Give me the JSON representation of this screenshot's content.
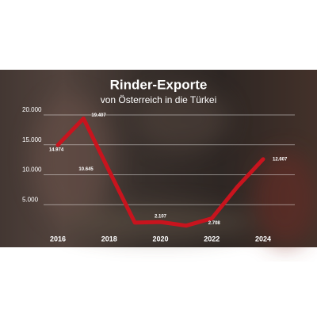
{
  "chart_data": {
    "type": "line",
    "title": "Rinder-Exporte",
    "subtitle": "von Österreich in die Türkei",
    "x": [
      2016,
      2017,
      2018,
      2019,
      2020,
      2021,
      2022,
      2023,
      2024
    ],
    "xticks": [
      2016,
      2018,
      2020,
      2022,
      2024
    ],
    "series": [
      {
        "name": "Rinder-Exporte",
        "color": "#c8141e",
        "values": [
          14974,
          19407,
          10645,
          2000,
          2107,
          1500,
          2708,
          8000,
          12607
        ],
        "value_labels": [
          "14.974",
          "19.407",
          "10.645",
          null,
          "2.107",
          null,
          "2.708",
          null,
          "12.607"
        ]
      }
    ],
    "ylim": [
      0,
      20000
    ],
    "yticks": [
      {
        "value": 5000,
        "label": "5.000"
      },
      {
        "value": 10000,
        "label": "10.000"
      },
      {
        "value": 15000,
        "label": "15.000"
      },
      {
        "value": 20000,
        "label": "20.000"
      }
    ],
    "grid": true
  }
}
